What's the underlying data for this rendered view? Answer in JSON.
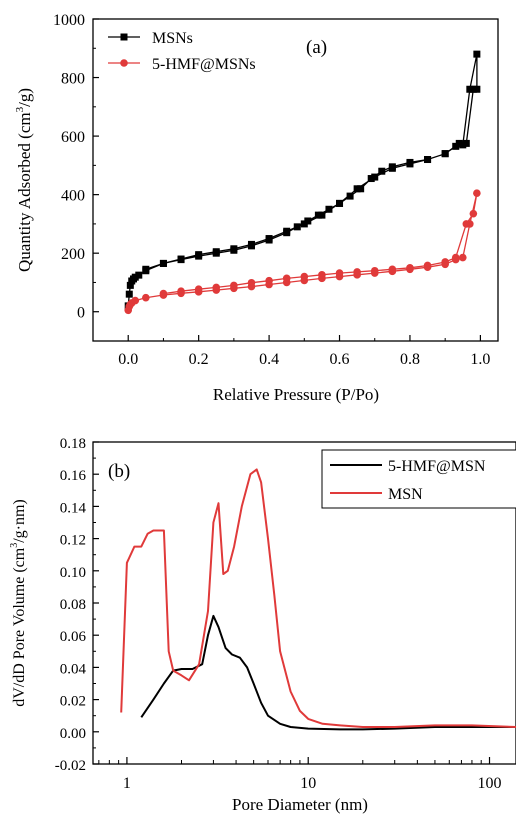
{
  "chart_data": [
    {
      "type": "scatter",
      "panel_label": "(a)",
      "xlabel": "Relative Pressure (P/Po)",
      "ylabel_main": "Quantity Adsorbed (cm",
      "ylabel_sup": "3",
      "ylabel_tail": "/g)",
      "xlim": [
        -0.1,
        1.05
      ],
      "ylim": [
        -100,
        1000
      ],
      "xticks": [
        0.0,
        0.2,
        0.4,
        0.6,
        0.8,
        1.0
      ],
      "xtick_labels": [
        "0.0",
        "0.2",
        "0.4",
        "0.6",
        "0.8",
        "1.0"
      ],
      "yticks": [
        0,
        200,
        400,
        600,
        800,
        1000
      ],
      "ytick_labels": [
        "0",
        "200",
        "400",
        "600",
        "800",
        "1000"
      ],
      "legend_position": "top-left",
      "series": [
        {
          "name": "MSNs",
          "color": "#000000",
          "marker": "square",
          "x": [
            0.0,
            0.003,
            0.006,
            0.01,
            0.015,
            0.02,
            0.03,
            0.05,
            0.1,
            0.15,
            0.2,
            0.25,
            0.3,
            0.35,
            0.4,
            0.45,
            0.5,
            0.55,
            0.6,
            0.65,
            0.7,
            0.75,
            0.8,
            0.85,
            0.9,
            0.93,
            0.95,
            0.97,
            0.99,
            0.99,
            0.98,
            0.96,
            0.94,
            0.9,
            0.85,
            0.8,
            0.75,
            0.72,
            0.69,
            0.66,
            0.63,
            0.6,
            0.57,
            0.54,
            0.51,
            0.48,
            0.45,
            0.4,
            0.35,
            0.3,
            0.25,
            0.2,
            0.15,
            0.1,
            0.05
          ],
          "y": [
            20,
            60,
            90,
            105,
            112,
            118,
            125,
            140,
            165,
            180,
            195,
            205,
            215,
            230,
            250,
            275,
            300,
            330,
            370,
            420,
            460,
            490,
            505,
            520,
            540,
            565,
            570,
            760,
            880,
            760,
            760,
            575,
            575,
            540,
            520,
            510,
            495,
            480,
            455,
            420,
            395,
            370,
            350,
            330,
            310,
            290,
            270,
            245,
            225,
            210,
            200,
            190,
            178,
            165,
            145
          ]
        },
        {
          "name": "5-HMF@MSNs",
          "color": "#e03a3a",
          "marker": "circle",
          "x": [
            0.0,
            0.003,
            0.006,
            0.01,
            0.02,
            0.05,
            0.1,
            0.15,
            0.2,
            0.25,
            0.3,
            0.35,
            0.4,
            0.45,
            0.5,
            0.55,
            0.6,
            0.65,
            0.7,
            0.75,
            0.8,
            0.85,
            0.9,
            0.93,
            0.95,
            0.97,
            0.99,
            0.98,
            0.96,
            0.93,
            0.9,
            0.85,
            0.8,
            0.75,
            0.7,
            0.65,
            0.6,
            0.55,
            0.5,
            0.45,
            0.4,
            0.35,
            0.3,
            0.25,
            0.2,
            0.15,
            0.1
          ],
          "y": [
            5,
            18,
            25,
            30,
            38,
            48,
            57,
            63,
            68,
            74,
            80,
            86,
            93,
            100,
            107,
            114,
            120,
            126,
            132,
            138,
            145,
            152,
            162,
            178,
            185,
            300,
            405,
            335,
            300,
            185,
            170,
            158,
            150,
            145,
            140,
            136,
            132,
            126,
            120,
            114,
            106,
            99,
            90,
            83,
            77,
            70,
            62
          ]
        }
      ]
    },
    {
      "type": "line",
      "panel_label": "(b)",
      "xlabel": "Pore Diameter (nm)",
      "ylabel_main": "dV/dD Pore Volume (cm",
      "ylabel_sup": "3",
      "ylabel_tail": "/g·nm)",
      "xscale": "log",
      "xlim": [
        0.65,
        140
      ],
      "ylim": [
        -0.02,
        0.18
      ],
      "xticks": [
        1,
        10,
        100
      ],
      "xtick_labels": [
        "1",
        "10",
        "100"
      ],
      "yticks": [
        -0.02,
        0.0,
        0.02,
        0.04,
        0.06,
        0.08,
        0.1,
        0.12,
        0.14,
        0.16,
        0.18
      ],
      "ytick_labels": [
        "-0.02",
        "0.00",
        "0.02",
        "0.04",
        "0.06",
        "0.08",
        "0.10",
        "0.12",
        "0.14",
        "0.16",
        "0.18"
      ],
      "legend_position": "top-right",
      "series": [
        {
          "name": "5-HMF@MSN",
          "color": "#000000",
          "x": [
            1.2,
            1.4,
            1.6,
            1.8,
            2.0,
            2.3,
            2.6,
            2.8,
            3.0,
            3.2,
            3.5,
            3.8,
            4.2,
            4.6,
            5.0,
            5.5,
            6.0,
            7.0,
            8.0,
            10,
            15,
            20,
            30,
            50,
            80,
            140
          ],
          "y": [
            0.009,
            0.02,
            0.03,
            0.038,
            0.039,
            0.039,
            0.042,
            0.06,
            0.072,
            0.065,
            0.052,
            0.048,
            0.046,
            0.04,
            0.03,
            0.018,
            0.01,
            0.005,
            0.003,
            0.002,
            0.0015,
            0.0015,
            0.002,
            0.003,
            0.003,
            0.003
          ]
        },
        {
          "name": "MSN",
          "color": "#e03a3a",
          "x": [
            0.93,
            1.0,
            1.1,
            1.2,
            1.3,
            1.4,
            1.5,
            1.6,
            1.7,
            1.8,
            2.0,
            2.2,
            2.5,
            2.8,
            3.0,
            3.2,
            3.4,
            3.6,
            3.9,
            4.3,
            4.8,
            5.2,
            5.5,
            6.0,
            6.5,
            7.0,
            8.0,
            9.0,
            10,
            12,
            15,
            20,
            30,
            50,
            80,
            140
          ],
          "y": [
            0.012,
            0.105,
            0.115,
            0.115,
            0.123,
            0.125,
            0.125,
            0.125,
            0.05,
            0.038,
            0.035,
            0.032,
            0.042,
            0.075,
            0.13,
            0.142,
            0.098,
            0.1,
            0.115,
            0.14,
            0.16,
            0.163,
            0.155,
            0.12,
            0.085,
            0.05,
            0.025,
            0.013,
            0.008,
            0.005,
            0.004,
            0.003,
            0.003,
            0.004,
            0.004,
            0.003
          ]
        }
      ]
    }
  ]
}
